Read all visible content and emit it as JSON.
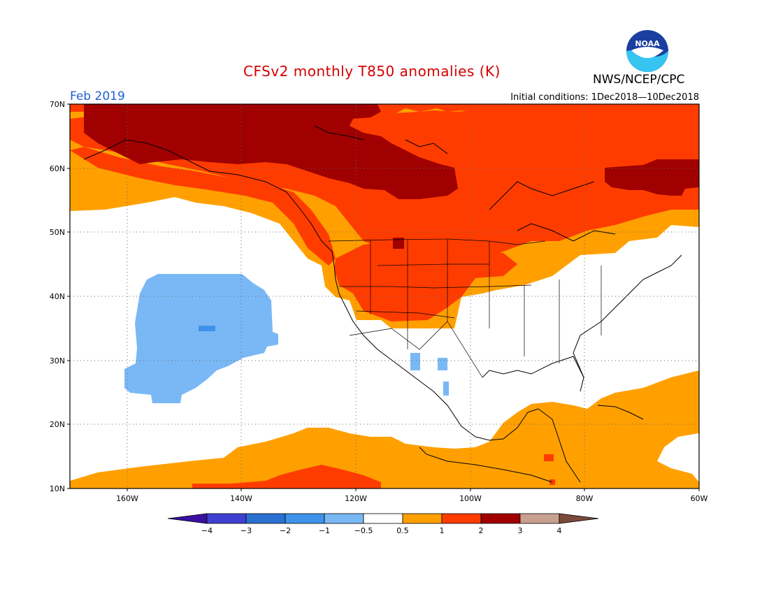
{
  "header": {
    "title": "CFSv2 monthly T850 anomalies (K)",
    "agency": "NWS/NCEP/CPC",
    "logo_text": "NOAA",
    "month": "Feb 2019",
    "initial_conditions": "Initial conditions: 1Dec2018—10Dec2018"
  },
  "map": {
    "lat_labels": [
      "70N",
      "60N",
      "50N",
      "40N",
      "30N",
      "20N",
      "10N"
    ],
    "lon_labels": [
      "160W",
      "140W",
      "120W",
      "100W",
      "80W",
      "60W"
    ],
    "grid": "dotted"
  },
  "legend": {
    "tick_labels": [
      "−4",
      "−3",
      "−2",
      "−1",
      "−0.5",
      "0.5",
      "1",
      "2",
      "3",
      "4"
    ],
    "colors": [
      "#3a10a0",
      "#4040d0",
      "#2a70d0",
      "#3f92ea",
      "#7ab8f5",
      "#ffffff",
      "#ffa000",
      "#ff3c00",
      "#a00000",
      "#c8a090",
      "#7a4a3a"
    ]
  },
  "colors": {
    "title": "#d20000",
    "month": "#1f5fd6",
    "anom_orange": "#ffa000",
    "anom_red": "#ff3c00",
    "anom_darkred": "#a00000",
    "anom_lightblue": "#7ab8f5",
    "anom_blue": "#3f92ea"
  }
}
